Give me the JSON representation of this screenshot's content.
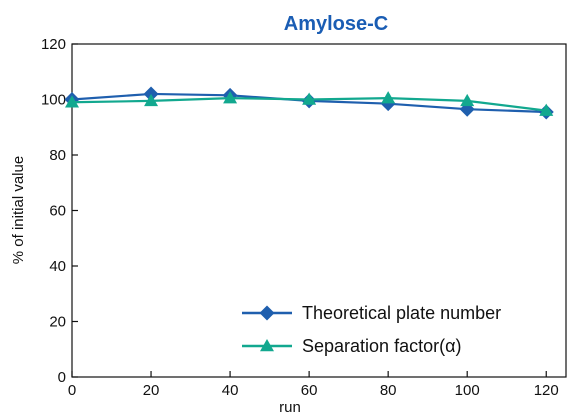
{
  "chart_data": {
    "type": "line",
    "title": "Amylose-C",
    "title_color": "#1a5db4",
    "xlabel": "run",
    "ylabel": "% of initial value",
    "x": [
      0,
      20,
      40,
      60,
      80,
      100,
      120
    ],
    "xlim": [
      0,
      125
    ],
    "ylim": [
      0,
      120
    ],
    "xticks": [
      0,
      20,
      40,
      60,
      80,
      100,
      120
    ],
    "yticks": [
      0,
      20,
      40,
      60,
      80,
      100,
      120
    ],
    "grid": false,
    "legend_position": "bottom-right",
    "series": [
      {
        "name": "Theoretical plate number",
        "marker": "diamond",
        "color": "#1f5fae",
        "values": [
          100,
          102,
          101.5,
          99.5,
          98.5,
          96.5,
          95.5
        ]
      },
      {
        "name": "Separation factor(α)",
        "marker": "triangle",
        "color": "#12a88f",
        "values": [
          99,
          99.5,
          100.5,
          100,
          100.5,
          99.5,
          96
        ]
      }
    ]
  }
}
